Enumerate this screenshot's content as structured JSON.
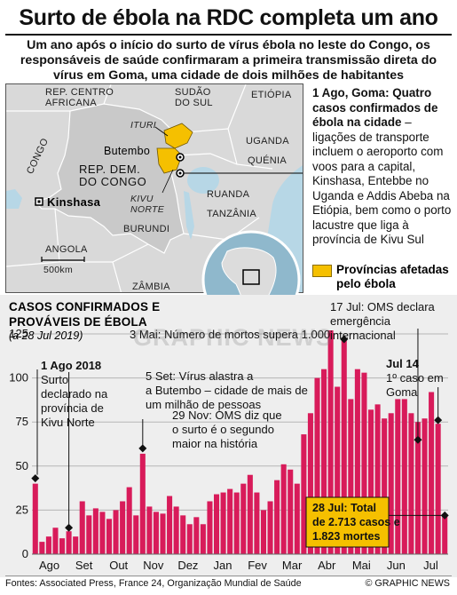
{
  "header": {
    "title": "Surto de ébola na RDC completa um ano",
    "subtitle": "Um ano após o início do surto de vírus ébola no leste do Congo, os responsáveis de saúde confirmaram a primeira transmissão direta do vírus em Goma, uma cidade de dois milhões de habitantes"
  },
  "map": {
    "countries": {
      "car": "REP. CENTRO AFRICANA",
      "south_sudan": "SUDÃO DO SUL",
      "ethiopia": "ETIÓPIA",
      "drc": "REP. DEM. DO CONGO",
      "congo": "CONGO",
      "uganda": "UGANDA",
      "kenya": "QUÉNIA",
      "rwanda": "RUANDA",
      "burundi": "BURUNDI",
      "tanzania": "TANZÂNIA",
      "angola": "ANGOLA",
      "zambia": "ZÂMBIA"
    },
    "provinces": {
      "ituri": "ITURI",
      "kivu_norte": "KIVU NORTE"
    },
    "cities": {
      "butembo": "Butembo",
      "kinshasa": "Kinshasa"
    },
    "scale": "500km",
    "colors": {
      "land": "#d9d9d9",
      "drc": "#c9c9c9",
      "water": "#b7d7e6",
      "affected": "#f5c000"
    }
  },
  "sidenote": {
    "heading": "1 Ago, Goma: Quatro casos confirmados de ébola na cidade",
    "body": "– ligações de transporte incluem o aeroporto com voos para a capital, Kinshasa, Entebbe no Uganda e Addis Abeba na Etiópia, bem como o porto lacustre que liga à província de Kivu Sul"
  },
  "legend": {
    "label": "Províncias afetadas pelo ébola",
    "color": "#f5c000"
  },
  "chart_header": {
    "title": "CASOS CONFIRMADOS E PROVÁVEIS DE ÉBOLA",
    "subtitle": "(a 28 Jul 2019)"
  },
  "chart_data": {
    "type": "bar",
    "bar_color": "#d81b5a",
    "grid": true,
    "ylim": [
      0,
      125
    ],
    "yticks": [
      0,
      25,
      50,
      75,
      100,
      125
    ],
    "month_labels": [
      "Ago",
      "Set",
      "Out",
      "Nov",
      "Dez",
      "Jan",
      "Fev",
      "Mar",
      "Abr",
      "Mai",
      "Jun",
      "Jul"
    ],
    "values": [
      40,
      7,
      10,
      15,
      9,
      13,
      10,
      30,
      22,
      26,
      24,
      20,
      25,
      30,
      38,
      22,
      57,
      27,
      24,
      23,
      33,
      27,
      22,
      17,
      21,
      17,
      30,
      34,
      35,
      37,
      35,
      40,
      45,
      35,
      25,
      30,
      42,
      51,
      48,
      40,
      68,
      80,
      100,
      105,
      127,
      95,
      122,
      88,
      105,
      103,
      82,
      85,
      77,
      80,
      88,
      88,
      80,
      75,
      77,
      92,
      74,
      22
    ],
    "annotations": [
      {
        "date": "1 Ago 2018",
        "text": "Surto declarado na província de Kivu Norte"
      },
      {
        "date": "5 Set:",
        "text": "Vírus alastra a Butembo – cidade de mais de um milhão de pessoas"
      },
      {
        "date": "29 Nov:",
        "text": "OMS diz que o surto é o segundo maior na história"
      },
      {
        "date": "3 Mai:",
        "text": "Número de mortos supera 1.000"
      },
      {
        "date": "17 Jul:",
        "text": "OMS declara emergência internacional"
      },
      {
        "date": "Jul 14",
        "text": "1º caso em Goma"
      }
    ],
    "callout": {
      "text": "28 Jul: Total de 2.713 casos e 1.823 mortes",
      "color": "#f5c000"
    }
  },
  "footer": {
    "sources": "Fontes: Associated Press, France 24, Organização Mundial de Saúde",
    "credit": "© GRAPHIC NEWS"
  },
  "watermark": "GRAPHIC NEWS"
}
